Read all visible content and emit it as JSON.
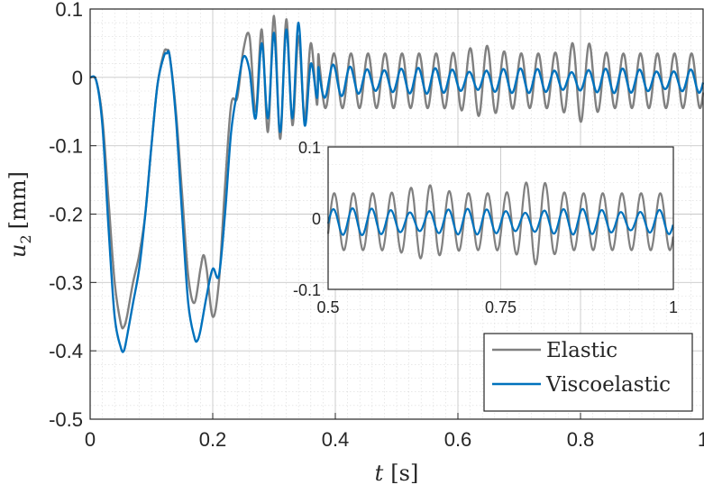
{
  "chart_data": {
    "type": "line",
    "xlabel_var": "t",
    "xlabel_unit": "[s]",
    "ylabel_var": "u",
    "ylabel_sub": "2",
    "ylabel_unit": "[mm]",
    "xlim": [
      0,
      1
    ],
    "ylim": [
      -0.5,
      0.1
    ],
    "xticks": [
      0,
      0.2,
      0.4,
      0.6,
      0.8,
      1
    ],
    "xtick_labels": [
      "0",
      "0.2",
      "0.4",
      "0.6",
      "0.8",
      "1"
    ],
    "yticks": [
      -0.5,
      -0.4,
      -0.3,
      -0.2,
      -0.1,
      0,
      0.1
    ],
    "ytick_labels": [
      "-0.5",
      "-0.4",
      "-0.3",
      "-0.2",
      "-0.1",
      "0",
      "0.1"
    ],
    "grid": true,
    "minor_grid": true,
    "legend_position": "bottom-right",
    "colors": {
      "elastic": "#808080",
      "viscoelastic": "#0072BD"
    },
    "series": [
      {
        "name": "Elastic",
        "x": [
          0,
          0.01,
          0.02,
          0.03,
          0.04,
          0.05,
          0.055,
          0.06,
          0.07,
          0.08,
          0.09,
          0.1,
          0.11,
          0.12,
          0.125,
          0.13,
          0.14,
          0.15,
          0.16,
          0.17,
          0.18,
          0.185,
          0.19,
          0.2,
          0.21,
          0.22,
          0.23,
          0.24,
          0.25,
          0.26,
          0.27,
          0.28,
          0.29,
          0.3,
          0.31,
          0.32,
          0.33,
          0.34,
          0.35,
          0.36,
          0.37
        ],
        "y": [
          0,
          -0.005,
          -0.06,
          -0.18,
          -0.3,
          -0.36,
          -0.365,
          -0.35,
          -0.3,
          -0.26,
          -0.2,
          -0.1,
          -0.01,
          0.035,
          0.04,
          0.03,
          -0.05,
          -0.17,
          -0.29,
          -0.33,
          -0.28,
          -0.26,
          -0.28,
          -0.35,
          -0.3,
          -0.16,
          -0.04,
          -0.03,
          0.04,
          0.06,
          -0.05,
          0.07,
          -0.08,
          0.09,
          -0.09,
          0.085,
          -0.07,
          0.06,
          -0.06,
          0.05,
          -0.04
        ]
      },
      {
        "name": "Viscoelastic",
        "x": [
          0,
          0.01,
          0.02,
          0.03,
          0.04,
          0.05,
          0.055,
          0.06,
          0.07,
          0.08,
          0.09,
          0.1,
          0.11,
          0.12,
          0.125,
          0.13,
          0.14,
          0.15,
          0.16,
          0.17,
          0.175,
          0.18,
          0.19,
          0.2,
          0.21,
          0.22,
          0.23,
          0.24,
          0.25,
          0.26,
          0.27,
          0.28,
          0.29,
          0.3,
          0.31,
          0.32,
          0.33,
          0.34,
          0.35,
          0.36,
          0.37
        ],
        "y": [
          0,
          -0.005,
          -0.07,
          -0.22,
          -0.35,
          -0.395,
          -0.4,
          -0.38,
          -0.33,
          -0.28,
          -0.2,
          -0.1,
          -0.01,
          0.03,
          0.035,
          0.03,
          -0.06,
          -0.2,
          -0.33,
          -0.38,
          -0.385,
          -0.37,
          -0.32,
          -0.28,
          -0.29,
          -0.2,
          -0.08,
          -0.02,
          0.03,
          0.01,
          -0.06,
          0.05,
          -0.06,
          0.065,
          -0.08,
          0.07,
          -0.06,
          0.08,
          -0.07,
          0.02,
          -0.03
        ]
      }
    ],
    "inset": {
      "xlim": [
        0.5,
        1
      ],
      "ylim": [
        -0.1,
        0.1
      ],
      "xticks": [
        0.5,
        0.75,
        1
      ],
      "xtick_labels": [
        "0.5",
        "0.75",
        "1"
      ],
      "yticks": [
        -0.1,
        0,
        0.1
      ],
      "ytick_labels": [
        "-0.1",
        "0",
        "0.1"
      ]
    }
  }
}
